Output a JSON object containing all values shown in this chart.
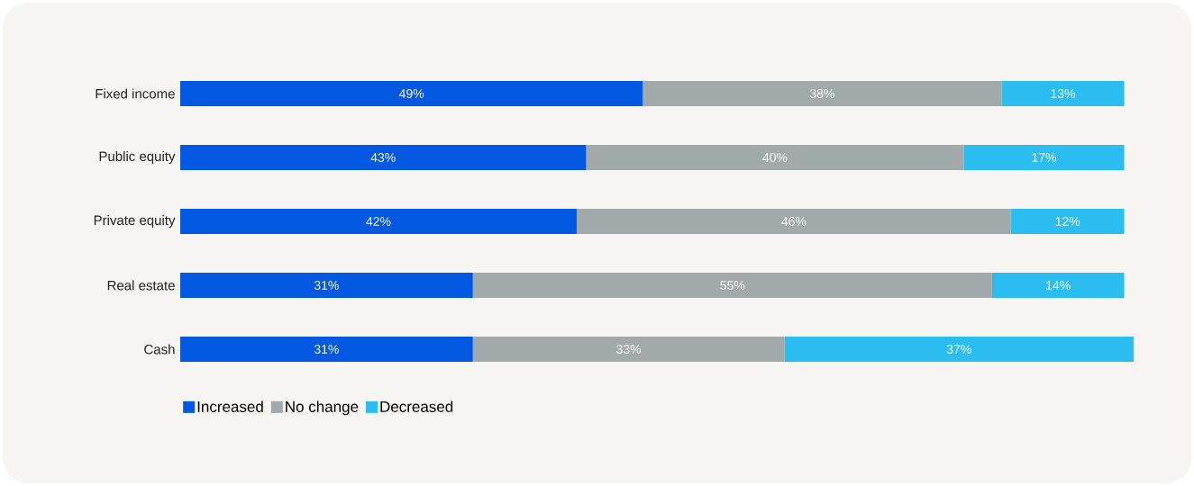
{
  "chart_data": {
    "type": "bar",
    "orientation": "horizontal",
    "stacked": true,
    "categories": [
      "Fixed income",
      "Public equity",
      "Private equity",
      "Real estate",
      "Cash"
    ],
    "series": [
      {
        "name": "Increased",
        "color": "#0258e0",
        "values": [
          49,
          43,
          42,
          31,
          31
        ],
        "value_labels": [
          "49%",
          "43%",
          "42%",
          "31%",
          "31%"
        ]
      },
      {
        "name": "No change",
        "color": "#a2a9ab",
        "values": [
          38,
          40,
          46,
          55,
          33
        ],
        "value_labels": [
          "38%",
          "40%",
          "46%",
          "55%",
          "33%"
        ]
      },
      {
        "name": "Decreased",
        "color": "#2cbdf0",
        "values": [
          13,
          17,
          12,
          14,
          37
        ],
        "value_labels": [
          "13%",
          "17%",
          "12%",
          "14%",
          "37%"
        ]
      }
    ],
    "legend": "bottom left"
  }
}
